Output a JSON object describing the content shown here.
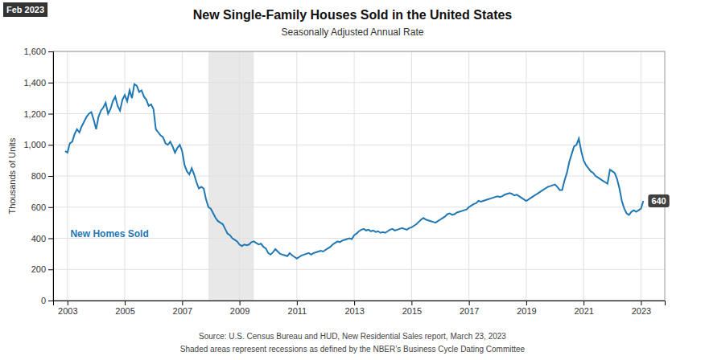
{
  "chart_data": {
    "type": "line",
    "title": "New Single-Family Houses Sold in the United States",
    "subtitle": "Seasonally Adjusted Annual Rate",
    "ylabel": "Thousands of Units",
    "date_label": "Feb 2023",
    "source": "Source:  U.S. Census Bureau and HUD, New Residential Sales report, March 23, 2023",
    "note": "Shaded areas represent recessions as defined by the NBER’s Business Cycle Dating Committee",
    "annotations": [
      {
        "text": "New Homes Sold",
        "x": 2003.1,
        "y": 410
      },
      {
        "text": "640",
        "x": 2023.083,
        "y": 640
      }
    ],
    "recessions": [
      {
        "start": 2007.917,
        "end": 2009.5
      }
    ],
    "grid": true,
    "xlim": [
      2002.5,
      2023.83
    ],
    "xticks": [
      2003,
      2005,
      2007,
      2009,
      2011,
      2013,
      2015,
      2017,
      2019,
      2021,
      2023
    ],
    "ylim": [
      0,
      1600
    ],
    "yticks": [
      0,
      200,
      400,
      600,
      800,
      {
        "value": 1000,
        "label": "1,000"
      },
      {
        "value": 1200,
        "label": "1,200"
      },
      {
        "value": 1400,
        "label": "1,400"
      },
      {
        "value": 1600,
        "label": "1,600"
      }
    ],
    "x": [
      2002.917,
      2003.0,
      2003.083,
      2003.167,
      2003.25,
      2003.333,
      2003.417,
      2003.5,
      2003.583,
      2003.667,
      2003.75,
      2003.833,
      2003.917,
      2004.0,
      2004.083,
      2004.167,
      2004.25,
      2004.333,
      2004.417,
      2004.5,
      2004.583,
      2004.667,
      2004.75,
      2004.833,
      2004.917,
      2005.0,
      2005.083,
      2005.167,
      2005.25,
      2005.333,
      2005.417,
      2005.5,
      2005.583,
      2005.667,
      2005.75,
      2005.833,
      2005.917,
      2006.0,
      2006.083,
      2006.167,
      2006.25,
      2006.333,
      2006.417,
      2006.5,
      2006.583,
      2006.667,
      2006.75,
      2006.833,
      2006.917,
      2007.0,
      2007.083,
      2007.167,
      2007.25,
      2007.333,
      2007.417,
      2007.5,
      2007.583,
      2007.667,
      2007.75,
      2007.833,
      2007.917,
      2008.0,
      2008.083,
      2008.167,
      2008.25,
      2008.333,
      2008.417,
      2008.5,
      2008.583,
      2008.667,
      2008.75,
      2008.833,
      2008.917,
      2009.0,
      2009.083,
      2009.167,
      2009.25,
      2009.333,
      2009.417,
      2009.5,
      2009.583,
      2009.667,
      2009.75,
      2009.833,
      2009.917,
      2010.0,
      2010.083,
      2010.167,
      2010.25,
      2010.333,
      2010.417,
      2010.5,
      2010.583,
      2010.667,
      2010.75,
      2010.833,
      2010.917,
      2011.0,
      2011.083,
      2011.167,
      2011.25,
      2011.333,
      2011.417,
      2011.5,
      2011.583,
      2011.667,
      2011.75,
      2011.833,
      2011.917,
      2012.0,
      2012.083,
      2012.167,
      2012.25,
      2012.333,
      2012.417,
      2012.5,
      2012.583,
      2012.667,
      2012.75,
      2012.833,
      2012.917,
      2013.0,
      2013.083,
      2013.167,
      2013.25,
      2013.333,
      2013.417,
      2013.5,
      2013.583,
      2013.667,
      2013.75,
      2013.833,
      2013.917,
      2014.0,
      2014.083,
      2014.167,
      2014.25,
      2014.333,
      2014.417,
      2014.5,
      2014.583,
      2014.667,
      2014.75,
      2014.833,
      2014.917,
      2015.0,
      2015.083,
      2015.167,
      2015.25,
      2015.333,
      2015.417,
      2015.5,
      2015.583,
      2015.667,
      2015.75,
      2015.833,
      2015.917,
      2016.0,
      2016.083,
      2016.167,
      2016.25,
      2016.333,
      2016.417,
      2016.5,
      2016.583,
      2016.667,
      2016.75,
      2016.833,
      2016.917,
      2017.0,
      2017.083,
      2017.167,
      2017.25,
      2017.333,
      2017.417,
      2017.5,
      2017.583,
      2017.667,
      2017.75,
      2017.833,
      2017.917,
      2018.0,
      2018.083,
      2018.167,
      2018.25,
      2018.333,
      2018.417,
      2018.5,
      2018.583,
      2018.667,
      2018.75,
      2018.833,
      2018.917,
      2019.0,
      2019.083,
      2019.167,
      2019.25,
      2019.333,
      2019.417,
      2019.5,
      2019.583,
      2019.667,
      2019.75,
      2019.833,
      2019.917,
      2020.0,
      2020.083,
      2020.167,
      2020.25,
      2020.333,
      2020.417,
      2020.5,
      2020.583,
      2020.667,
      2020.75,
      2020.833,
      2020.917,
      2021.0,
      2021.083,
      2021.167,
      2021.25,
      2021.333,
      2021.417,
      2021.5,
      2021.583,
      2021.667,
      2021.75,
      2021.833,
      2021.917,
      2022.0,
      2022.083,
      2022.167,
      2022.25,
      2022.333,
      2022.417,
      2022.5,
      2022.583,
      2022.667,
      2022.75,
      2022.833,
      2022.917,
      2023.0,
      2023.083
    ],
    "values": [
      960,
      950,
      1010,
      1020,
      1070,
      1100,
      1080,
      1120,
      1150,
      1180,
      1200,
      1210,
      1160,
      1100,
      1180,
      1220,
      1240,
      1270,
      1200,
      1230,
      1280,
      1310,
      1250,
      1220,
      1290,
      1320,
      1280,
      1350,
      1300,
      1390,
      1380,
      1340,
      1350,
      1310,
      1290,
      1250,
      1260,
      1230,
      1100,
      1080,
      1060,
      1050,
      1010,
      1000,
      1020,
      990,
      950,
      980,
      1000,
      960,
      870,
      830,
      810,
      850,
      810,
      760,
      720,
      730,
      720,
      650,
      600,
      590,
      560,
      530,
      510,
      500,
      490,
      460,
      430,
      420,
      400,
      390,
      380,
      360,
      350,
      360,
      355,
      360,
      375,
      380,
      370,
      360,
      365,
      345,
      335,
      305,
      295,
      310,
      330,
      315,
      300,
      295,
      290,
      285,
      305,
      290,
      280,
      270,
      280,
      290,
      295,
      300,
      305,
      295,
      305,
      310,
      315,
      320,
      315,
      325,
      335,
      345,
      360,
      370,
      380,
      375,
      385,
      390,
      395,
      400,
      395,
      420,
      430,
      445,
      455,
      460,
      450,
      455,
      445,
      450,
      440,
      445,
      435,
      440,
      435,
      445,
      455,
      460,
      450,
      455,
      460,
      465,
      460,
      455,
      465,
      470,
      480,
      490,
      505,
      520,
      530,
      520,
      515,
      510,
      505,
      500,
      510,
      520,
      530,
      540,
      555,
      560,
      550,
      555,
      565,
      570,
      575,
      580,
      585,
      600,
      610,
      620,
      625,
      640,
      635,
      640,
      645,
      650,
      655,
      660,
      665,
      670,
      665,
      670,
      680,
      685,
      690,
      685,
      675,
      680,
      670,
      660,
      650,
      640,
      650,
      660,
      670,
      680,
      690,
      700,
      710,
      720,
      730,
      735,
      740,
      745,
      730,
      710,
      710,
      770,
      820,
      890,
      940,
      990,
      1000,
      1040,
      960,
      900,
      870,
      850,
      830,
      820,
      800,
      790,
      780,
      770,
      760,
      750,
      840,
      830,
      820,
      780,
      720,
      640,
      590,
      560,
      550,
      570,
      580,
      570,
      580,
      590,
      640
    ]
  }
}
